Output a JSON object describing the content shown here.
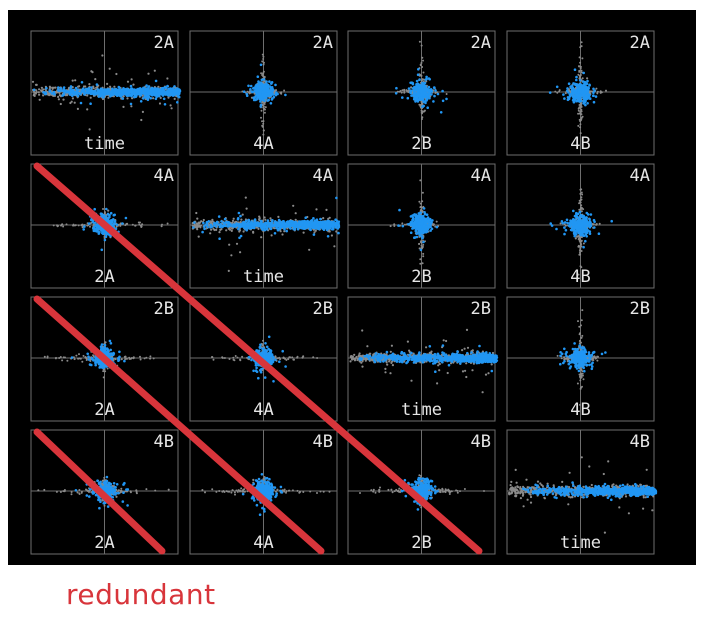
{
  "chart_data": {
    "type": "scatter",
    "layout": "scatter-matrix",
    "grid": true,
    "colors": {
      "background": "#000000",
      "frame": "#6e6e6e",
      "point_old": "#8a8a8a",
      "point_new": "#2196f3",
      "label": "#e6e6e6",
      "annotation": "#d8353b"
    },
    "rows": [
      "2A",
      "4A",
      "2B",
      "4B"
    ],
    "columns": [
      [
        "time",
        "4A",
        "2B",
        "4B"
      ],
      [
        "2A",
        "time",
        "2B",
        "4B"
      ],
      [
        "2A",
        "4A",
        "time",
        "4B"
      ],
      [
        "2A",
        "4A",
        "2B",
        "time"
      ]
    ],
    "redundant_cells": [
      [
        1,
        0
      ],
      [
        2,
        0
      ],
      [
        2,
        1
      ],
      [
        3,
        0
      ],
      [
        3,
        1
      ],
      [
        3,
        2
      ]
    ],
    "annotation": "redundant"
  }
}
